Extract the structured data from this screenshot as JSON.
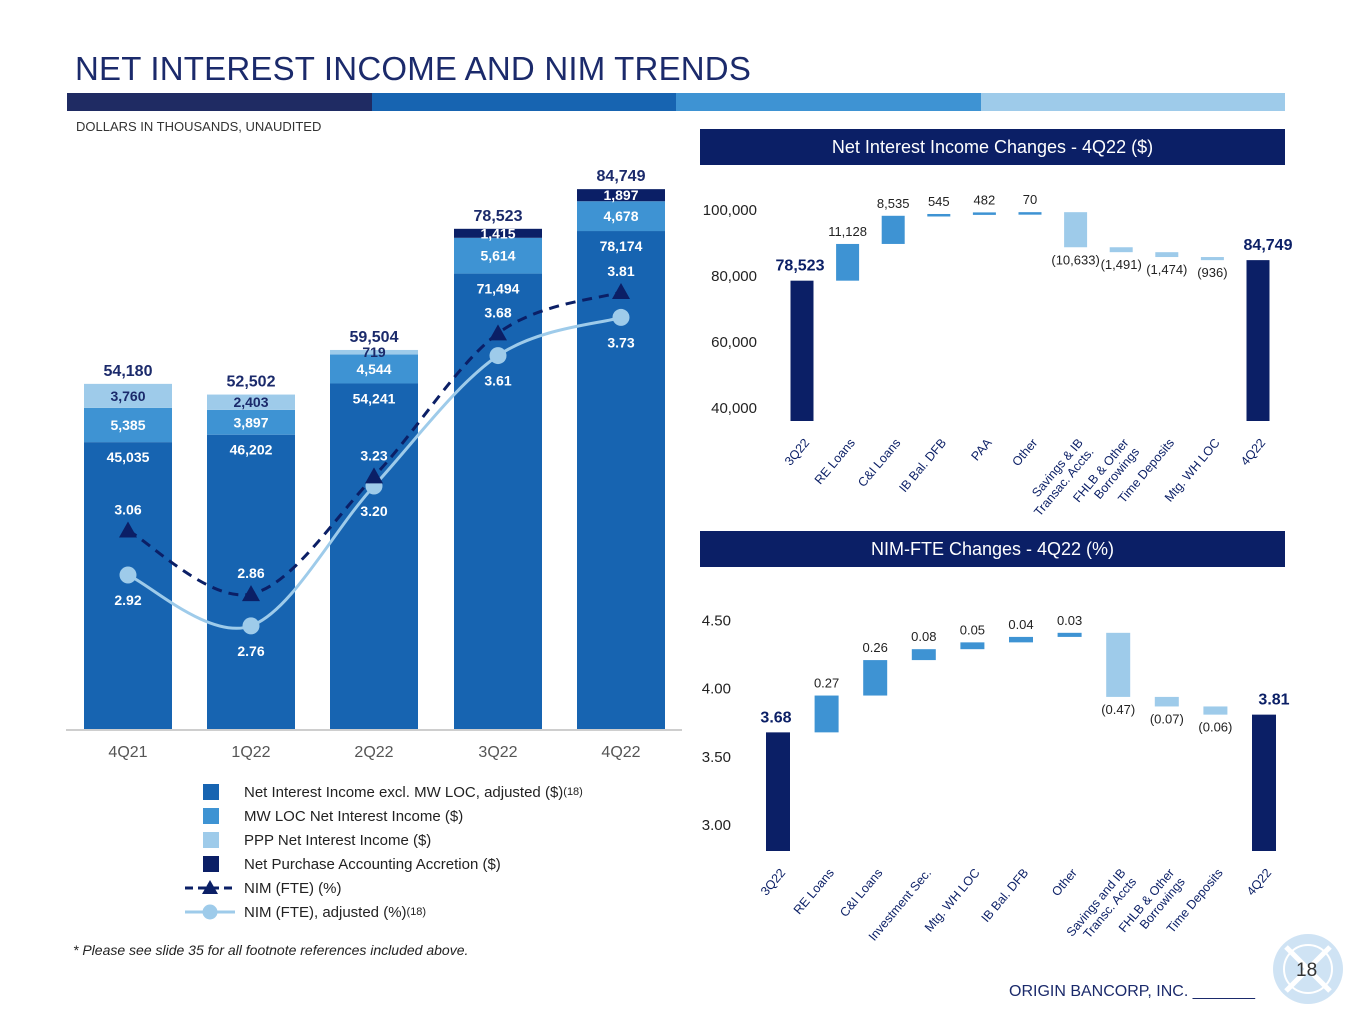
{
  "page": {
    "title": "NET INTEREST INCOME AND NIM TRENDS",
    "subtitle": "DOLLARS IN THOUSANDS, UNAUDITED",
    "footnote": "* Please see slide 35 for all footnote references included above.",
    "company": "ORIGIN BANCORP, INC. _______",
    "page_number": "18",
    "band_colors": [
      "#1f2b63",
      "#1764b1",
      "#3e93d3",
      "#9ecbea"
    ],
    "header_color": "#0b1f66"
  },
  "chart_data": [
    {
      "type": "bar",
      "stacked": true,
      "title": "",
      "categories": [
        "4Q21",
        "1Q22",
        "2Q22",
        "3Q22",
        "4Q22"
      ],
      "totals": [
        "54,180",
        "52,502",
        "59,504",
        "78,523",
        "84,749"
      ],
      "ylim": [
        0,
        90000
      ],
      "series": [
        {
          "name": "Net Interest Income excl. MW LOC, adjusted ($)",
          "sup": "(18)",
          "color": "#1764b1",
          "values": [
            45035,
            46202,
            54241,
            71494,
            78174
          ],
          "labels": [
            "45,035",
            "46,202",
            "54,241",
            "71,494",
            "78,174"
          ]
        },
        {
          "name": "MW LOC Net Interest Income ($)",
          "color": "#3e93d3",
          "values": [
            5385,
            3897,
            4544,
            5614,
            4678
          ],
          "labels": [
            "5,385",
            "3,897",
            "4,544",
            "5,614",
            "4,678"
          ]
        },
        {
          "name": "PPP Net Interest Income ($)",
          "color": "#9ecbea",
          "values": [
            3760,
            2403,
            719,
            0,
            0
          ],
          "labels": [
            "3,760",
            "2,403",
            "719",
            "",
            ""
          ]
        },
        {
          "name": "Net Purchase Accounting Accretion ($)",
          "color": "#0b1f66",
          "values": [
            0,
            0,
            0,
            1415,
            1897
          ],
          "labels": [
            "",
            "",
            "",
            "1,415",
            "1,897"
          ]
        }
      ],
      "lines": [
        {
          "name": "NIM (FTE) (%)",
          "sup": "",
          "color": "#0b1f66",
          "marker": "triangle",
          "dashed": true,
          "values": [
            3.06,
            2.86,
            3.23,
            3.68,
            3.81
          ],
          "labels": [
            "3.06",
            "2.86",
            "3.23",
            "3.68",
            "3.81"
          ]
        },
        {
          "name": "NIM (FTE), adjusted (%)",
          "sup": "(18)",
          "color": "#9ecbea",
          "marker": "circle",
          "dashed": false,
          "values": [
            2.92,
            2.76,
            3.2,
            3.61,
            3.73
          ],
          "labels": [
            "2.92",
            "2.76",
            "3.20",
            "3.61",
            "3.73"
          ]
        }
      ],
      "nim_ylim": [
        1.5,
        4.1
      ]
    },
    {
      "type": "waterfall",
      "title": "Net Interest Income Changes - 4Q22 ($)",
      "yticks": [
        "100,000",
        "80,000",
        "60,000",
        "40,000"
      ],
      "ytick_values": [
        100000,
        80000,
        60000,
        40000
      ],
      "ylim": [
        36000,
        106000
      ],
      "categories": [
        "3Q22",
        "RE Loans",
        "C&I Loans",
        "IB Bal. DFB",
        "PAA",
        "Other",
        "Savings & IB Transac. Accts.",
        "FHLB & Other Borrowings",
        "Time Deposits",
        "Mtg. WH LOC",
        "4Q22"
      ],
      "values": [
        78523,
        11128,
        8535,
        545,
        482,
        70,
        -10633,
        -1491,
        -1474,
        -936,
        84749
      ],
      "labels": [
        "78,523",
        "11,128",
        "8,535",
        "545",
        "482",
        "70",
        "(10,633)",
        "(1,491)",
        "(1,474)",
        "(936)",
        "84,749"
      ],
      "colors": {
        "total": "#0b1f66",
        "increase": "#3e93d3",
        "decrease": "#9ecbea"
      }
    },
    {
      "type": "waterfall",
      "title": "NIM-FTE Changes - 4Q22 (%)",
      "yticks": [
        "4.50",
        "4.00",
        "3.50",
        "3.00"
      ],
      "ytick_values": [
        4.5,
        4.0,
        3.5,
        3.0
      ],
      "ylim": [
        2.81,
        4.68
      ],
      "categories": [
        "3Q22",
        "RE Loans",
        "C&I Loans",
        "Investment Sec.",
        "Mtg. WH LOC",
        "IB Bal. DFB",
        "Other",
        "Savings and IB Transc. Accts",
        "FHLB & Other Borrowings",
        "Time Deposits",
        "4Q22"
      ],
      "values": [
        3.68,
        0.27,
        0.26,
        0.08,
        0.05,
        0.04,
        0.03,
        -0.47,
        -0.07,
        -0.06,
        3.81
      ],
      "labels": [
        "3.68",
        "0.27",
        "0.26",
        "0.08",
        "0.05",
        "0.04",
        "0.03",
        "(0.47)",
        "(0.07)",
        "(0.06)",
        "3.81"
      ],
      "colors": {
        "total": "#0b1f66",
        "increase": "#3e93d3",
        "decrease": "#9ecbea"
      }
    }
  ]
}
